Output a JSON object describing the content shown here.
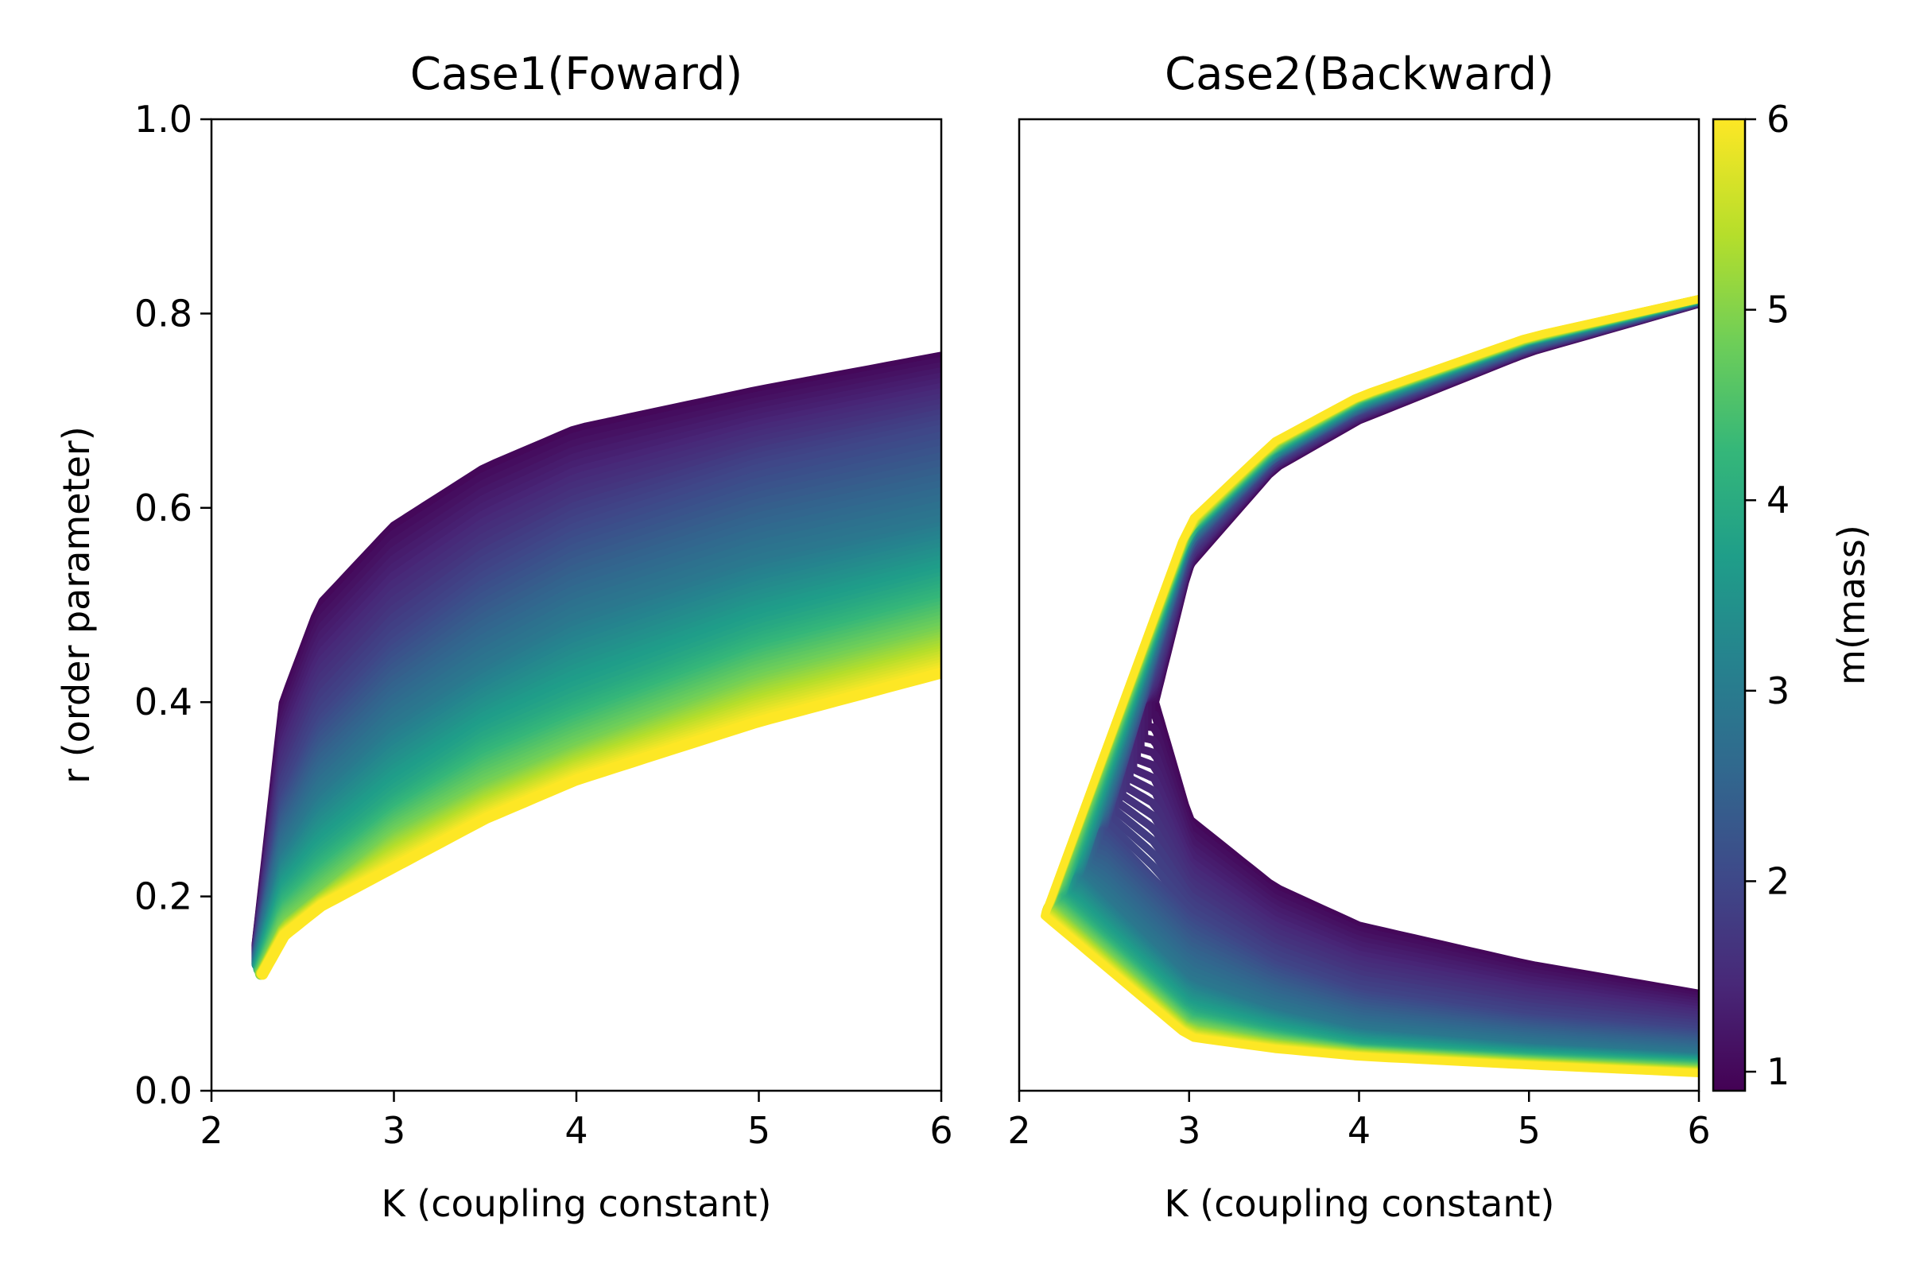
{
  "chart_data": [
    {
      "type": "line",
      "title": "Case1(Foward)",
      "xlabel": "K (coupling constant)",
      "ylabel": "r (order parameter)",
      "xlim": [
        2,
        6
      ],
      "ylim": [
        0,
        1
      ],
      "xticks": [
        "2",
        "3",
        "4",
        "5",
        "6"
      ],
      "yticks": [
        "0.0",
        "0.2",
        "0.4",
        "0.6",
        "0.8",
        "1.0"
      ],
      "grid": false,
      "description_of_series": "family of curves colored by m from 1 to 6",
      "series": [
        {
          "m": 1.0,
          "x": [
            2.25,
            2.4,
            2.6,
            3.0,
            3.5,
            4.0,
            5.0,
            6.0
          ],
          "y": [
            0.15,
            0.4,
            0.5,
            0.58,
            0.64,
            0.68,
            0.72,
            0.755
          ]
        },
        {
          "m": 2.0,
          "x": [
            2.25,
            2.4,
            2.6,
            3.0,
            3.5,
            4.0,
            5.0,
            6.0
          ],
          "y": [
            0.14,
            0.3,
            0.38,
            0.46,
            0.53,
            0.58,
            0.64,
            0.68
          ]
        },
        {
          "m": 3.0,
          "x": [
            2.25,
            2.4,
            2.6,
            3.0,
            3.5,
            4.0,
            5.0,
            6.0
          ],
          "y": [
            0.13,
            0.24,
            0.3,
            0.37,
            0.43,
            0.48,
            0.54,
            0.58
          ]
        },
        {
          "m": 4.0,
          "x": [
            2.26,
            2.4,
            2.6,
            3.0,
            3.5,
            4.0,
            5.0,
            6.0
          ],
          "y": [
            0.125,
            0.2,
            0.24,
            0.3,
            0.36,
            0.4,
            0.47,
            0.52
          ]
        },
        {
          "m": 5.0,
          "x": [
            2.27,
            2.4,
            2.6,
            3.0,
            3.5,
            4.0,
            5.0,
            6.0
          ],
          "y": [
            0.12,
            0.17,
            0.2,
            0.26,
            0.31,
            0.35,
            0.42,
            0.47
          ]
        },
        {
          "m": 6.0,
          "x": [
            2.28,
            2.4,
            2.6,
            3.0,
            3.5,
            4.0,
            5.0,
            6.0
          ],
          "y": [
            0.12,
            0.16,
            0.19,
            0.23,
            0.28,
            0.32,
            0.38,
            0.43
          ]
        }
      ]
    },
    {
      "type": "line",
      "title": "Case2(Backward)",
      "xlabel": "K (coupling constant)",
      "xlim": [
        2,
        6
      ],
      "ylim": [
        0,
        1
      ],
      "xticks": [
        "2",
        "3",
        "4",
        "5",
        "6"
      ],
      "grid": false,
      "series": [
        {
          "m": 1.0,
          "upper_x": [
            2.8,
            3.0,
            3.5,
            4.0,
            5.0,
            6.0
          ],
          "upper_y": [
            0.4,
            0.54,
            0.64,
            0.69,
            0.76,
            0.81
          ],
          "lower_x": [
            2.8,
            3.0,
            3.5,
            4.0,
            5.0,
            6.0
          ],
          "lower_y": [
            0.4,
            0.28,
            0.21,
            0.17,
            0.13,
            0.1
          ]
        },
        {
          "m": 2.0,
          "upper_x": [
            2.5,
            3.0,
            3.5,
            4.0,
            5.0,
            6.0
          ],
          "upper_y": [
            0.27,
            0.56,
            0.65,
            0.7,
            0.765,
            0.812
          ],
          "lower_x": [
            2.5,
            3.0,
            3.5,
            4.0,
            5.0,
            6.0
          ],
          "lower_y": [
            0.27,
            0.18,
            0.13,
            0.1,
            0.075,
            0.06
          ]
        },
        {
          "m": 3.0,
          "upper_x": [
            2.35,
            3.0,
            3.5,
            4.0,
            5.0,
            6.0
          ],
          "upper_y": [
            0.22,
            0.57,
            0.655,
            0.705,
            0.77,
            0.813
          ],
          "lower_x": [
            2.35,
            3.0,
            3.5,
            4.0,
            5.0,
            6.0
          ],
          "lower_y": [
            0.22,
            0.11,
            0.08,
            0.06,
            0.045,
            0.035
          ]
        },
        {
          "m": 4.0,
          "upper_x": [
            2.25,
            3.0,
            3.5,
            4.0,
            5.0,
            6.0
          ],
          "upper_y": [
            0.2,
            0.575,
            0.66,
            0.71,
            0.772,
            0.814
          ],
          "lower_x": [
            2.25,
            3.0,
            3.5,
            4.0,
            5.0,
            6.0
          ],
          "lower_y": [
            0.2,
            0.08,
            0.06,
            0.045,
            0.035,
            0.028
          ]
        },
        {
          "m": 5.0,
          "upper_x": [
            2.18,
            3.0,
            3.5,
            4.0,
            5.0,
            6.0
          ],
          "upper_y": [
            0.19,
            0.58,
            0.665,
            0.713,
            0.774,
            0.815
          ],
          "lower_x": [
            2.18,
            3.0,
            3.5,
            4.0,
            5.0,
            6.0
          ],
          "lower_y": [
            0.19,
            0.065,
            0.05,
            0.04,
            0.03,
            0.022
          ]
        },
        {
          "m": 6.0,
          "upper_x": [
            2.15,
            3.0,
            3.5,
            4.0,
            5.0,
            6.0
          ],
          "upper_y": [
            0.18,
            0.585,
            0.668,
            0.715,
            0.776,
            0.815
          ],
          "lower_x": [
            2.15,
            3.0,
            3.5,
            4.0,
            5.0,
            6.0
          ],
          "lower_y": [
            0.18,
            0.055,
            0.043,
            0.035,
            0.026,
            0.018
          ]
        }
      ]
    }
  ],
  "colorbar": {
    "label": "m(mass)",
    "range": [
      0.9,
      6.0
    ],
    "ticks": [
      "1",
      "2",
      "3",
      "4",
      "5",
      "6"
    ],
    "colormap": [
      "#440154",
      "#482878",
      "#3e4989",
      "#31688e",
      "#26828e",
      "#1f9e89",
      "#35b779",
      "#6ece58",
      "#b5de2b",
      "#fde725"
    ]
  }
}
